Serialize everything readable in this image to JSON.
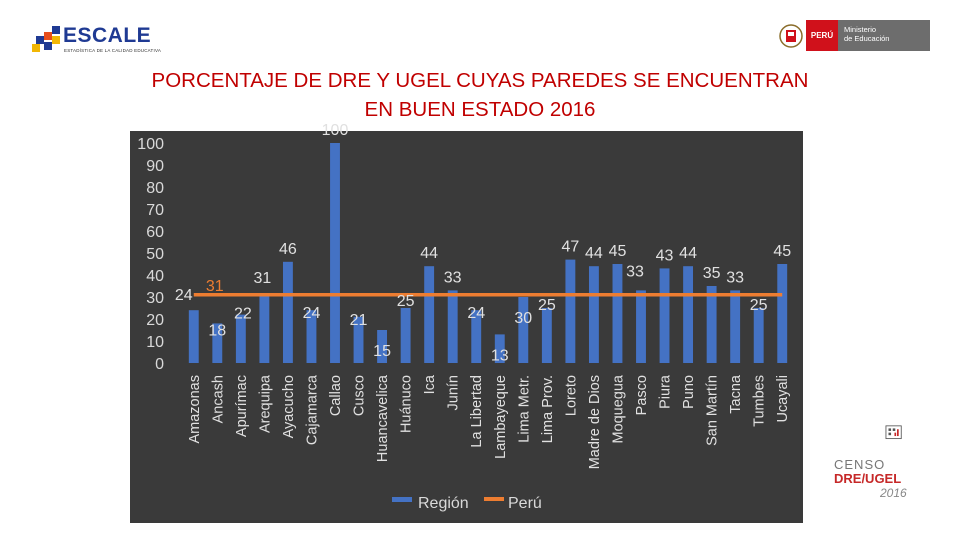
{
  "header": {
    "logo_text": "ESCALE",
    "logo_subtitle": "ESTADÍSTICA DE LA CALIDAD EDUCATIVA",
    "ministry_badge": "PERÚ",
    "ministry_name_line1": "Ministerio",
    "ministry_name_line2": "de Educación"
  },
  "title_line1": "PORCENTAJE DE DRE Y UGEL CUYAS PAREDES SE ENCUENTRAN",
  "title_line2": "EN BUEN ESTADO 2016",
  "footer_logo": {
    "line1": "CENSO",
    "line2": "DRE/UGEL",
    "line3": "2016"
  },
  "colors": {
    "bar": "#4472c4",
    "reference_line": "#ed7d31",
    "panel": "#3a3a3a",
    "title": "#c00000"
  },
  "chart_data": {
    "type": "bar",
    "title": "",
    "xlabel": "",
    "ylabel": "",
    "ylim": [
      0,
      100
    ],
    "yticks": [
      0,
      10,
      20,
      30,
      40,
      50,
      60,
      70,
      80,
      90,
      100
    ],
    "categories": [
      "Amazonas",
      "Ancash",
      "Apurímac",
      "Arequipa",
      "Ayacucho",
      "Cajamarca",
      "Callao",
      "Cusco",
      "Huancavelica",
      "Huánuco",
      "Ica",
      "Junín",
      "La Libertad",
      "Lambayeque",
      "Lima Metr.",
      "Lima Prov.",
      "Loreto",
      "Madre de Dios",
      "Moquegua",
      "Pasco",
      "Piura",
      "Puno",
      "San Martín",
      "Tacna",
      "Tumbes",
      "Ucayali"
    ],
    "series": [
      {
        "name": "Región",
        "values": [
          24,
          18,
          22,
          31,
          46,
          24,
          100,
          21,
          15,
          25,
          44,
          33,
          24,
          13,
          30,
          25,
          47,
          44,
          45,
          33,
          43,
          44,
          35,
          33,
          25,
          45
        ],
        "labels": [
          "24",
          "18",
          "22",
          "31",
          "46",
          "24",
          "100",
          "21",
          "15",
          "25",
          "44",
          "33",
          "24",
          "13",
          "30",
          "25",
          "47",
          "44",
          "45",
          "33",
          "43",
          "44",
          "35",
          "33",
          "25",
          "45"
        ]
      },
      {
        "name": "Perú",
        "type": "line",
        "value": 31,
        "label": "31"
      }
    ],
    "legend": [
      "Región",
      "Perú"
    ]
  }
}
